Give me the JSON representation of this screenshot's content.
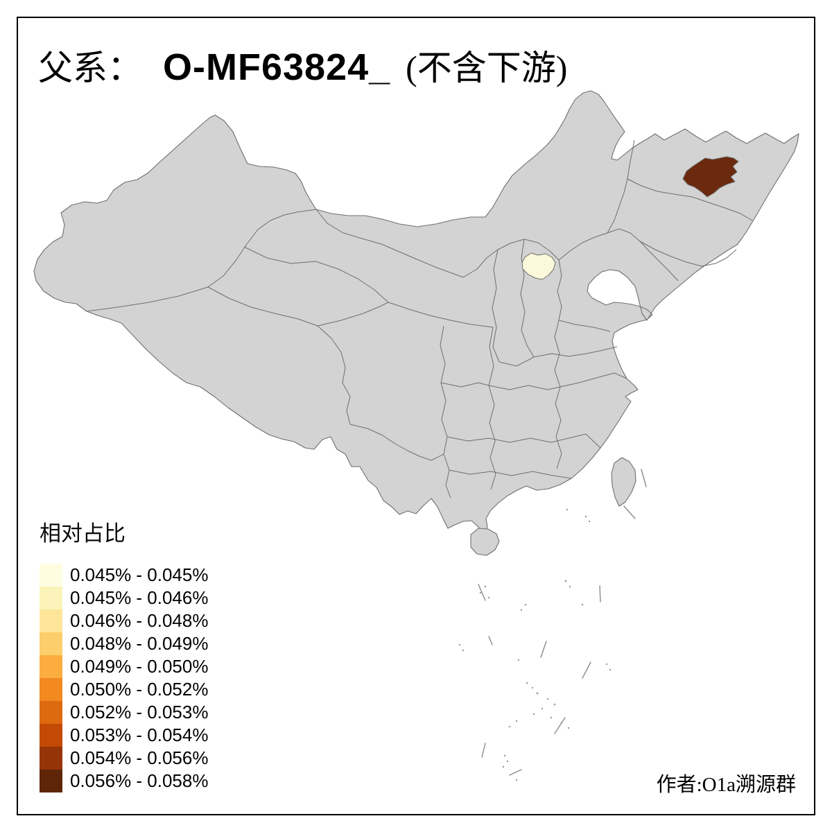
{
  "title": {
    "prefix": "父系：",
    "code": "O-MF63824_",
    "suffix": "(不含下游)"
  },
  "legend": {
    "title": "相对占比",
    "items": [
      {
        "range": "0.045% - 0.045%",
        "color": "#FFFDE1"
      },
      {
        "range": "0.045% - 0.046%",
        "color": "#FBF3B9"
      },
      {
        "range": "0.046% - 0.048%",
        "color": "#FEE59A"
      },
      {
        "range": "0.048% - 0.049%",
        "color": "#FDCE6C"
      },
      {
        "range": "0.049% - 0.050%",
        "color": "#FBAD3F"
      },
      {
        "range": "0.050% - 0.052%",
        "color": "#F28A20"
      },
      {
        "range": "0.052% - 0.053%",
        "color": "#DE6A10"
      },
      {
        "range": "0.053% - 0.054%",
        "color": "#C34A04"
      },
      {
        "range": "0.054% - 0.056%",
        "color": "#953406"
      },
      {
        "range": "0.056% - 0.058%",
        "color": "#5F2508"
      }
    ]
  },
  "map": {
    "province_fill": "#D3D3D3",
    "border_color": "#6E6E6E",
    "sea_color": "#FFFFFF",
    "regions": [
      {
        "name": "northeast-harbin-area",
        "range": "0.056% - 0.058%",
        "color": "#6B2A0E"
      },
      {
        "name": "beijing-area",
        "range": "0.045% - 0.045%",
        "color": "#FCF8DB"
      }
    ]
  },
  "credit": "作者:O1a溯源群"
}
